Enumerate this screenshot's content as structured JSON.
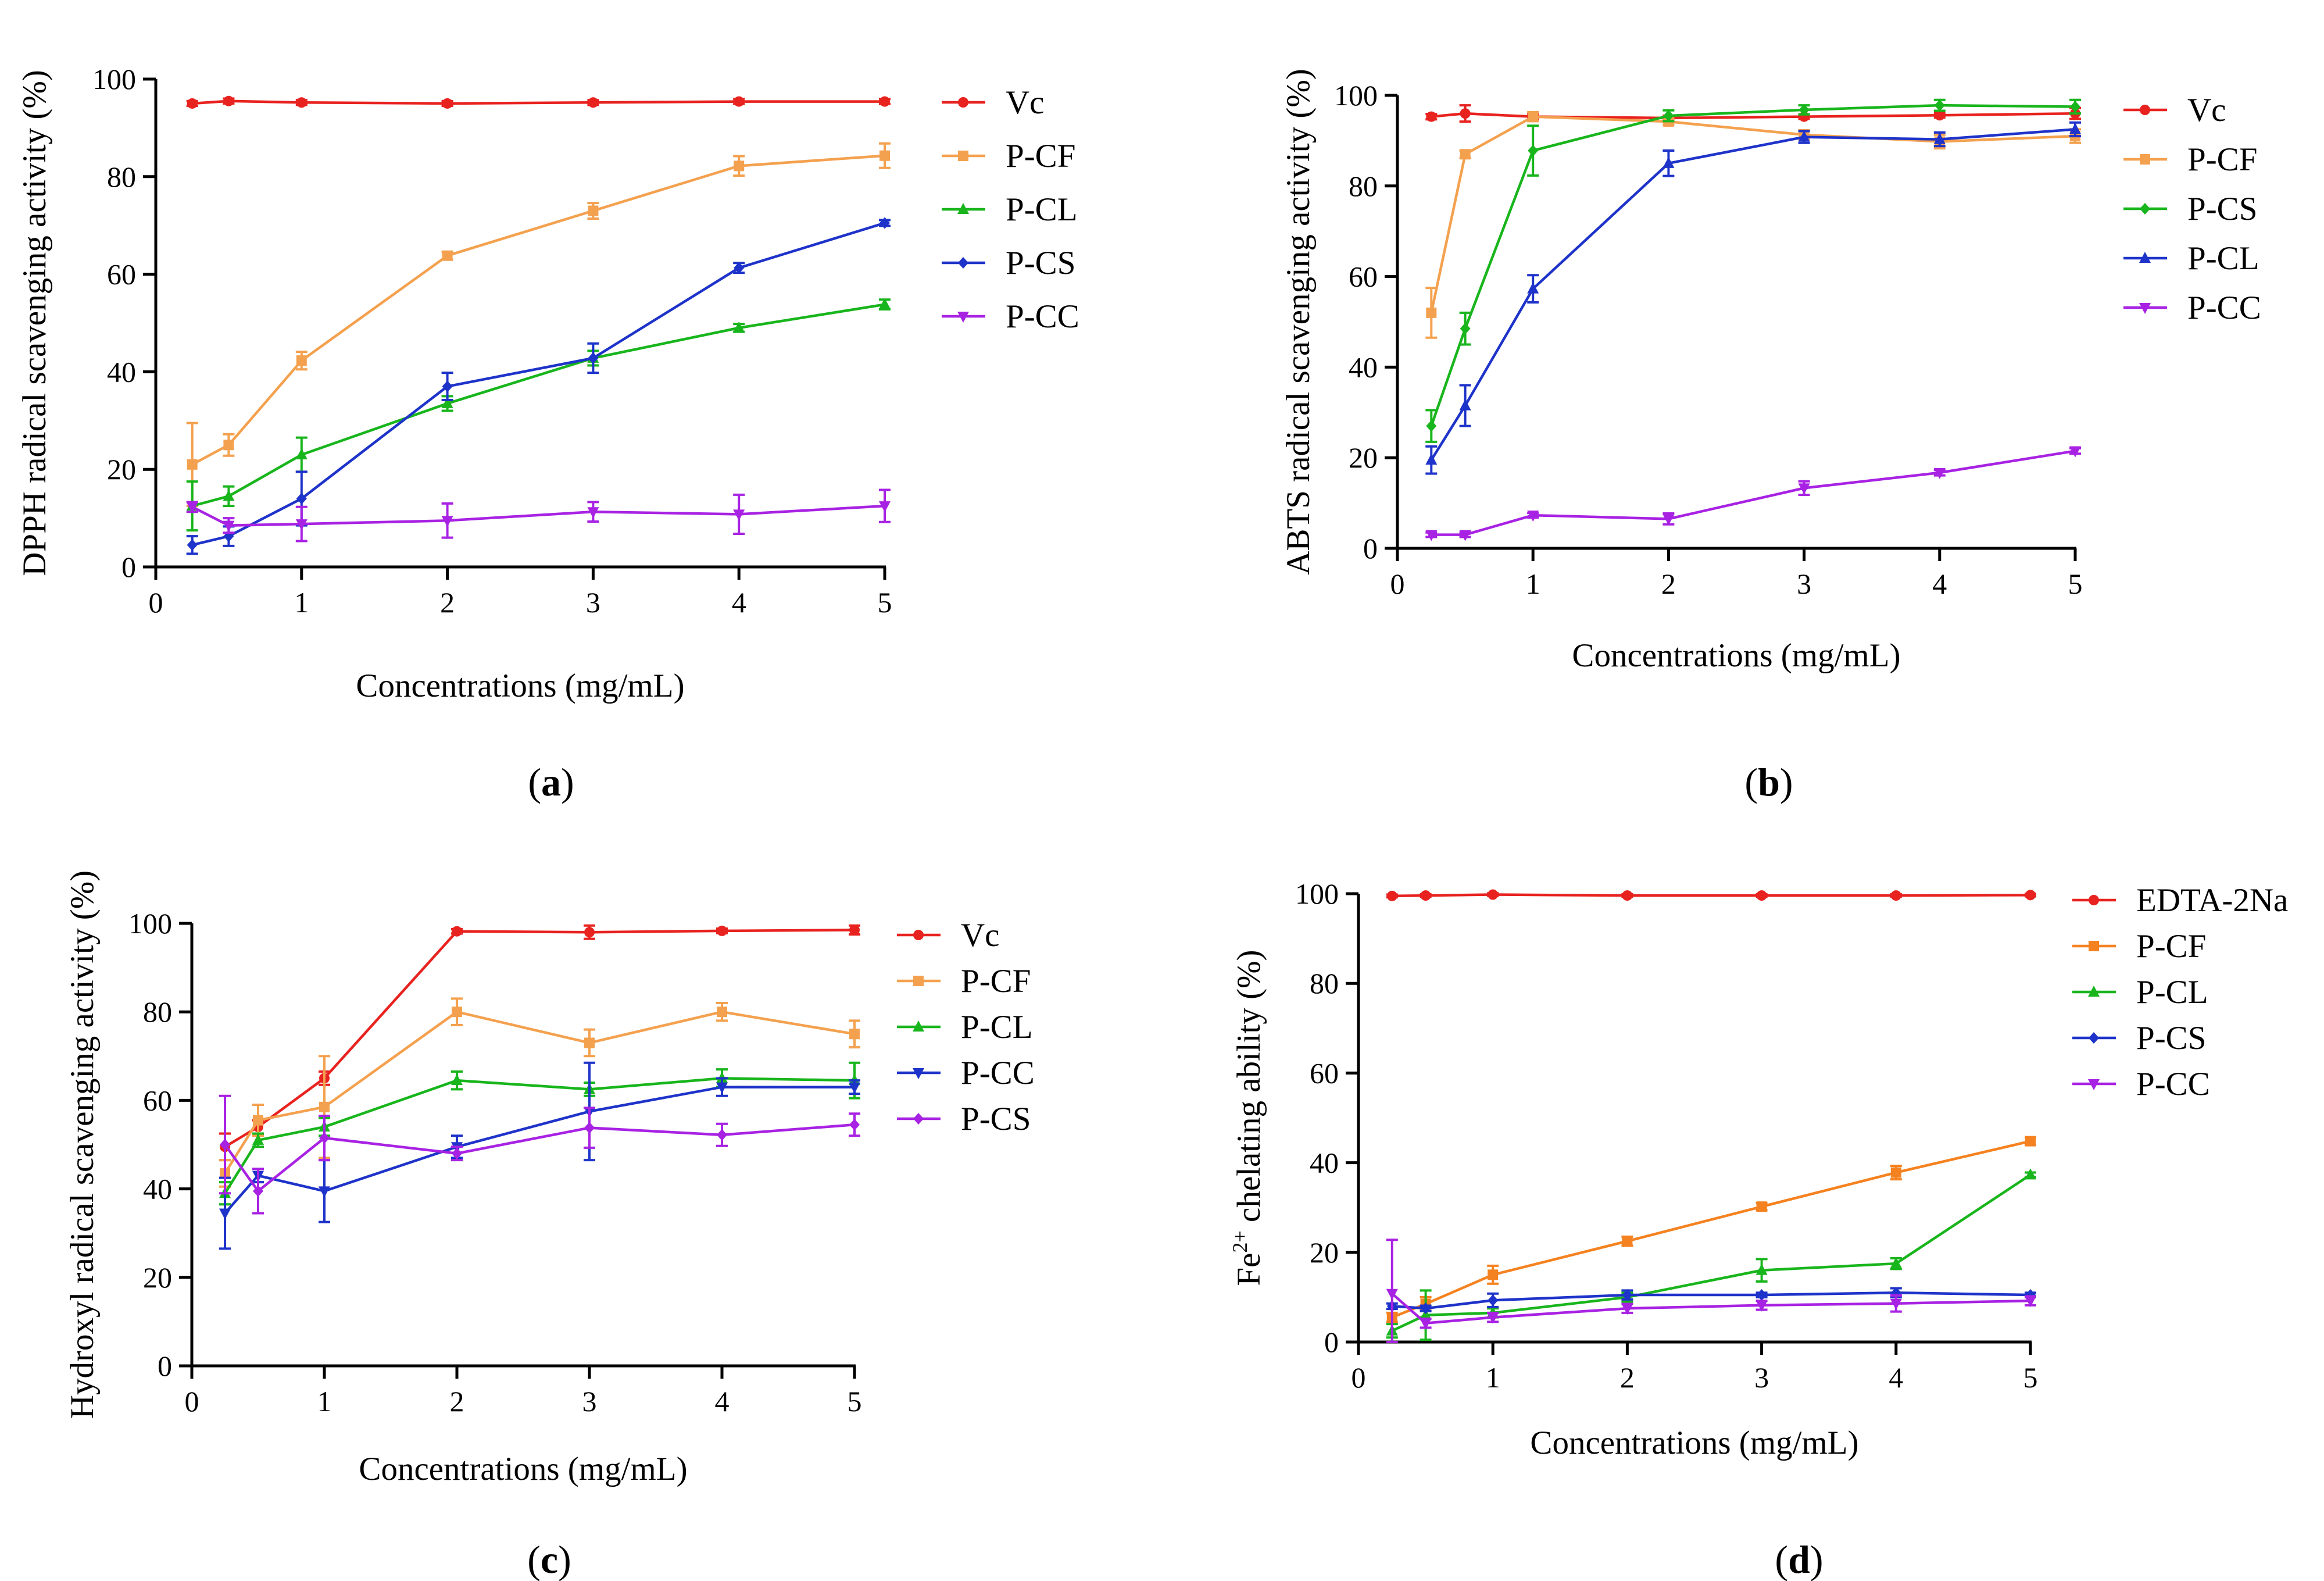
{
  "chart_data": [
    {
      "type": "line",
      "panel": "a",
      "caption": "(a)",
      "xlabel": "Concentrations (mg/mL)",
      "ylabel": "DPPH radical scavenging activity (%)",
      "xlim": [
        0,
        5
      ],
      "ylim": [
        0,
        100
      ],
      "xticks": [
        0,
        1,
        2,
        3,
        4,
        5
      ],
      "yticks": [
        0,
        20,
        40,
        60,
        80,
        100
      ],
      "x": [
        0.25,
        0.5,
        1,
        2,
        3,
        4,
        5
      ],
      "legend_position": "right",
      "series": [
        {
          "name": "Vc",
          "color": "#e8221f",
          "marker": "circle",
          "values": [
            95,
            95.5,
            95.2,
            95,
            95.2,
            95.4,
            95.4
          ],
          "errors": [
            0.5,
            0.5,
            0.5,
            0.5,
            0.5,
            0.5,
            0.5
          ]
        },
        {
          "name": "P-CF",
          "color": "#f4a14f",
          "marker": "square",
          "values": [
            21,
            25,
            42.3,
            63.8,
            73,
            82.2,
            84.3
          ],
          "errors": [
            8.5,
            2.2,
            1.8,
            0.8,
            1.6,
            2,
            2.5
          ]
        },
        {
          "name": "P-CL",
          "color": "#18b51c",
          "marker": "triangle-up",
          "values": [
            12.5,
            14.5,
            23,
            33.5,
            42.8,
            49,
            53.8
          ],
          "errors": [
            5,
            2,
            3.5,
            1.5,
            1.5,
            0.8,
            1
          ]
        },
        {
          "name": "P-CS",
          "color": "#1e33c9",
          "marker": "diamond",
          "values": [
            4.5,
            6.3,
            14,
            37,
            42.8,
            61.3,
            70.5
          ],
          "errors": [
            1.8,
            2,
            5.5,
            2.8,
            3,
            1,
            0.6
          ]
        },
        {
          "name": "P-CC",
          "color": "#a822e3",
          "marker": "triangle-down",
          "values": [
            12.3,
            8.5,
            8.8,
            9.5,
            11.3,
            10.8,
            12.5
          ],
          "errors": [
            1,
            1.5,
            3.5,
            3.5,
            2,
            4,
            3.3
          ]
        }
      ]
    },
    {
      "type": "line",
      "panel": "b",
      "caption": "(b)",
      "xlabel": "Concentrations (mg/mL)",
      "ylabel": "ABTS radical scavenging activity (%)",
      "xlim": [
        0,
        5
      ],
      "ylim": [
        0,
        100
      ],
      "xticks": [
        0,
        1,
        2,
        3,
        4,
        5
      ],
      "yticks": [
        0,
        20,
        40,
        60,
        80,
        100
      ],
      "x": [
        0.25,
        0.5,
        1,
        2,
        3,
        4,
        5
      ],
      "legend_position": "right",
      "series": [
        {
          "name": "Vc",
          "color": "#e8221f",
          "marker": "circle",
          "values": [
            95.3,
            96,
            95.3,
            95,
            95.3,
            95.6,
            96
          ],
          "errors": [
            0.6,
            1.8,
            0.5,
            0.5,
            0.5,
            0.5,
            1.2
          ]
        },
        {
          "name": "P-CF",
          "color": "#f4a14f",
          "marker": "square",
          "values": [
            52,
            87,
            95.3,
            94.2,
            91.3,
            89.8,
            91
          ],
          "errors": [
            5.5,
            0.8,
            1,
            0.7,
            1,
            1.5,
            1.5
          ]
        },
        {
          "name": "P-CS",
          "color": "#18b51c",
          "marker": "diamond",
          "values": [
            27,
            48.5,
            87.8,
            95.5,
            96.8,
            97.8,
            97.5
          ],
          "errors": [
            3.5,
            3.5,
            5.5,
            1.2,
            1,
            1.2,
            1.5
          ]
        },
        {
          "name": "P-CL",
          "color": "#1e33c9",
          "marker": "triangle-up",
          "values": [
            19.5,
            31.5,
            57.3,
            85,
            90.8,
            90.3,
            92.5
          ],
          "errors": [
            3,
            4.5,
            3,
            2.8,
            1.3,
            1.5,
            1.5
          ]
        },
        {
          "name": "P-CC",
          "color": "#a822e3",
          "marker": "triangle-down",
          "values": [
            3,
            3,
            7.3,
            6.5,
            13.3,
            16.7,
            21.5
          ],
          "errors": [
            0.5,
            0.5,
            0.5,
            1.2,
            1.5,
            0.6,
            0.6
          ]
        }
      ]
    },
    {
      "type": "line",
      "panel": "c",
      "caption": "(c)",
      "xlabel": "Concentrations (mg/mL)",
      "ylabel": "Hydroxyl radical scavenging activity (%)",
      "xlim": [
        0,
        5
      ],
      "ylim": [
        0,
        100
      ],
      "xticks": [
        0,
        1,
        2,
        3,
        4,
        5
      ],
      "yticks": [
        0,
        20,
        40,
        60,
        80,
        100
      ],
      "x": [
        0.25,
        0.5,
        1,
        2,
        3,
        4,
        5
      ],
      "legend_position": "right",
      "series": [
        {
          "name": "Vc",
          "color": "#e8221f",
          "marker": "circle",
          "values": [
            49.5,
            54,
            65,
            98.2,
            98,
            98.3,
            98.5
          ],
          "errors": [
            3,
            1.5,
            1.5,
            0.5,
            1.5,
            0.5,
            1
          ]
        },
        {
          "name": "P-CF",
          "color": "#f4a14f",
          "marker": "square",
          "values": [
            43.5,
            55.5,
            58.5,
            80,
            73,
            80,
            75
          ],
          "errors": [
            3,
            3.5,
            11.5,
            3,
            3,
            2,
            3
          ]
        },
        {
          "name": "P-CL",
          "color": "#18b51c",
          "marker": "triangle-up",
          "values": [
            39,
            51,
            54,
            64.5,
            62.5,
            65,
            64.5
          ],
          "errors": [
            2.5,
            1.5,
            2,
            2,
            1.5,
            2,
            4
          ]
        },
        {
          "name": "P-CC",
          "color": "#1e33c9",
          "marker": "triangle-down",
          "values": [
            34.5,
            43,
            39.5,
            49.5,
            57.5,
            63,
            63
          ],
          "errors": [
            8,
            1.5,
            7,
            2.5,
            11,
            2,
            1.5
          ]
        },
        {
          "name": "P-CS",
          "color": "#a822e3",
          "marker": "diamond",
          "values": [
            50,
            39.5,
            51.5,
            48,
            53.8,
            52.2,
            54.5
          ],
          "errors": [
            11,
            5,
            5,
            1.5,
            4.5,
            2.5,
            2.5
          ]
        }
      ]
    },
    {
      "type": "line",
      "panel": "d",
      "caption": "(d)",
      "xlabel": "Concentrations (mg/mL)",
      "ylabel_main": "Fe",
      "ylabel_sup": "2+",
      "ylabel_rest": "chelating ability (%)",
      "xlim": [
        0,
        5
      ],
      "ylim": [
        0,
        100
      ],
      "xticks": [
        0,
        1,
        2,
        3,
        4,
        5
      ],
      "yticks": [
        0,
        20,
        40,
        60,
        80,
        100
      ],
      "x": [
        0.25,
        0.5,
        1,
        2,
        3,
        4,
        5
      ],
      "legend_position": "right",
      "series": [
        {
          "name": "EDTA-2Na",
          "color": "#e8221f",
          "marker": "circle",
          "values": [
            99.5,
            99.6,
            99.8,
            99.6,
            99.6,
            99.6,
            99.7
          ],
          "errors": [
            0.3,
            0.3,
            0.3,
            0.3,
            0.3,
            0.3,
            0.3
          ]
        },
        {
          "name": "P-CF",
          "color": "#f58220",
          "marker": "square",
          "values": [
            5.5,
            8.5,
            15,
            22.5,
            30.2,
            37.8,
            44.8
          ],
          "errors": [
            1,
            1.5,
            2,
            1,
            0.8,
            1.5,
            0.8
          ]
        },
        {
          "name": "P-CL",
          "color": "#18b51c",
          "marker": "triangle-up",
          "values": [
            2.5,
            6,
            6.5,
            10,
            16,
            17.5,
            37.3
          ],
          "errors": [
            1.5,
            5.5,
            1,
            1,
            2.5,
            1.2,
            0.5
          ]
        },
        {
          "name": "P-CS",
          "color": "#1e33c9",
          "marker": "diamond",
          "values": [
            8,
            7.5,
            9.3,
            10.5,
            10.5,
            11,
            10.5
          ],
          "errors": [
            0.6,
            0.6,
            1.5,
            1,
            0.5,
            1,
            0.5
          ]
        },
        {
          "name": "P-CC",
          "color": "#a822e3",
          "marker": "triangle-down",
          "values": [
            10.8,
            4.2,
            5.5,
            7.5,
            8.2,
            8.6,
            9.2
          ],
          "errors": [
            12,
            1,
            1,
            1,
            1,
            1.8,
            1
          ]
        }
      ]
    }
  ]
}
